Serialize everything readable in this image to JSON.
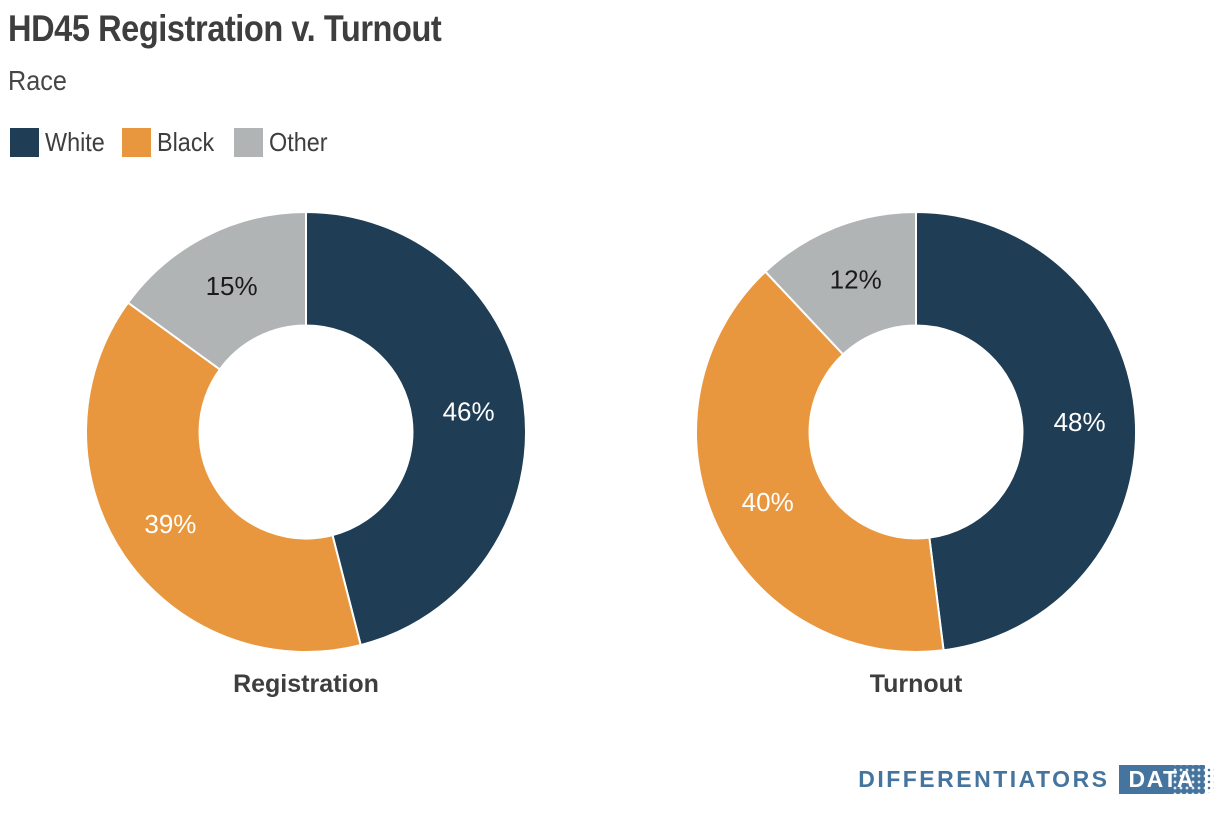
{
  "header": {
    "title": "HD45 Registration v. Turnout",
    "subtitle": "Race"
  },
  "legend": {
    "position": "top-left",
    "items": [
      {
        "label": "White",
        "color": "#1f3d54"
      },
      {
        "label": "Black",
        "color": "#e8973e"
      },
      {
        "label": "Other",
        "color": "#b0b4b5"
      }
    ]
  },
  "chart_data": {
    "type": "pie",
    "subtype": "donut",
    "title": "HD45 Registration v. Turnout",
    "group_label": "Race",
    "categories": [
      "White",
      "Black",
      "Other"
    ],
    "colors": [
      "#1f3d54",
      "#e8973e",
      "#b0b4b5"
    ],
    "slice_label_colors": [
      "#ffffff",
      "#ffffff",
      "#1b1b1b"
    ],
    "start_angle_deg": 0,
    "direction": "clockwise",
    "inner_radius_ratio": 0.484,
    "slice_border_color": "#ffffff",
    "legend_position": "top-left",
    "charts": [
      {
        "name": "Registration",
        "values": [
          46,
          39,
          15
        ],
        "labels": [
          "46%",
          "39%",
          "15%"
        ]
      },
      {
        "name": "Turnout",
        "values": [
          48,
          40,
          12
        ],
        "labels": [
          "48%",
          "40%",
          "12%"
        ]
      }
    ]
  },
  "footer": {
    "brand": "DIFFERENTIATORS",
    "brand_badge": "DATA",
    "brand_color": "#45749e"
  }
}
